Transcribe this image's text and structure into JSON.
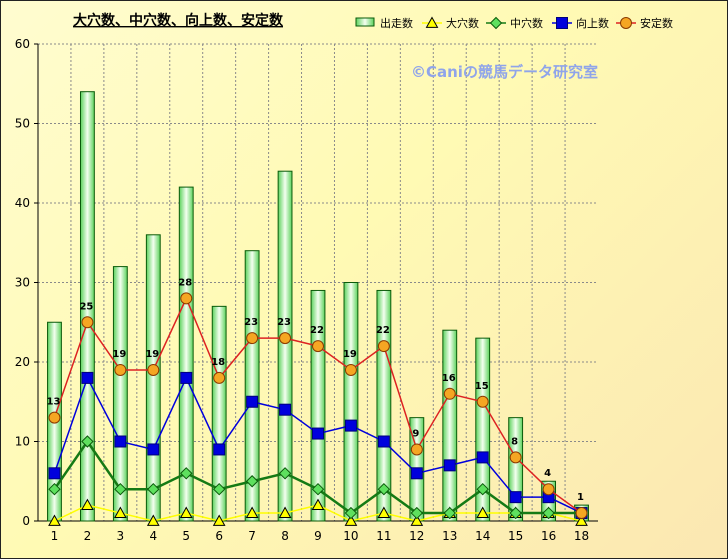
{
  "chart_data": {
    "type": "bar",
    "title": "大穴数、中穴数、向上数、安定数",
    "watermark": "©Caniの競馬データ研究室",
    "categories": [
      "1",
      "2",
      "3",
      "4",
      "5",
      "6",
      "7",
      "8",
      "9",
      "10",
      "11",
      "12",
      "13",
      "14",
      "15",
      "16",
      "18"
    ],
    "ylim": [
      0,
      60
    ],
    "yticks": [
      0,
      10,
      20,
      30,
      40,
      50,
      60
    ],
    "grid": true,
    "legend_position": "top-right",
    "series": [
      {
        "name": "出走数",
        "type": "bar",
        "color": "#118811",
        "values": [
          25,
          54,
          32,
          36,
          42,
          27,
          34,
          44,
          29,
          30,
          29,
          13,
          24,
          23,
          13,
          5,
          2
        ]
      },
      {
        "name": "大穴数",
        "type": "line",
        "color": "#ffff00",
        "marker": "triangle",
        "values": [
          0,
          2,
          1,
          0,
          1,
          0,
          1,
          1,
          2,
          0,
          1,
          0,
          1,
          1,
          1,
          1,
          0
        ]
      },
      {
        "name": "中穴数",
        "type": "line",
        "color": "#157a15",
        "marker": "diamond",
        "values": [
          4,
          10,
          4,
          4,
          6,
          4,
          5,
          6,
          4,
          1,
          4,
          1,
          1,
          4,
          1,
          1,
          1
        ]
      },
      {
        "name": "向上数",
        "type": "line",
        "color": "#0000dd",
        "marker": "square",
        "values": [
          6,
          18,
          10,
          9,
          18,
          9,
          15,
          14,
          11,
          12,
          10,
          6,
          7,
          8,
          3,
          3,
          1
        ]
      },
      {
        "name": "安定数",
        "type": "line",
        "color": "#dd2222",
        "marker": "circle",
        "values": [
          13,
          25,
          19,
          19,
          28,
          18,
          23,
          23,
          22,
          19,
          22,
          9,
          16,
          15,
          8,
          4,
          1
        ]
      }
    ]
  }
}
